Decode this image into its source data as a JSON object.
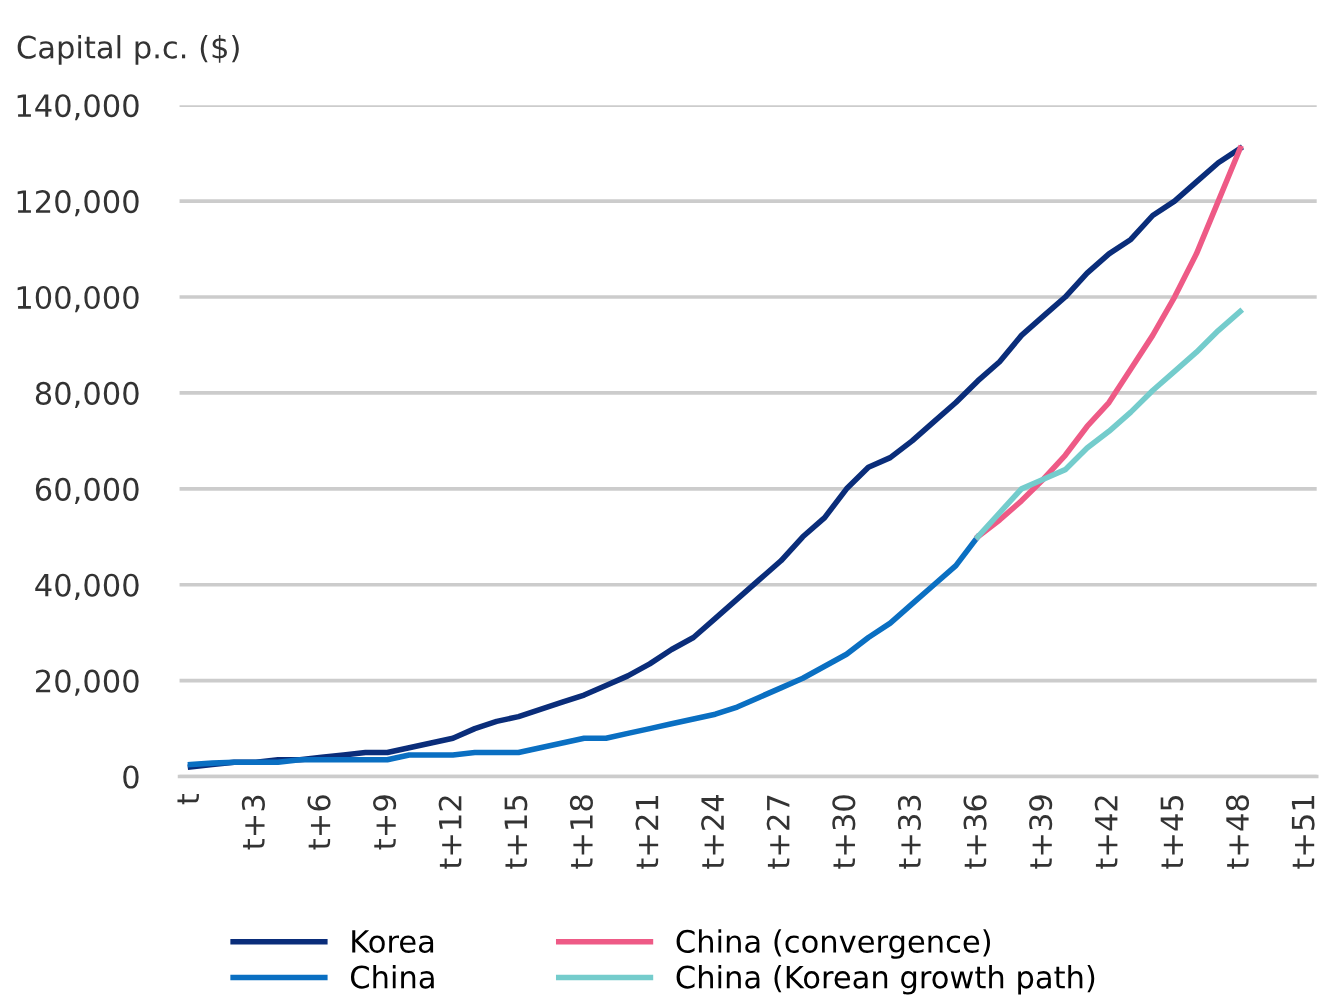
{
  "chart_data": {
    "type": "line",
    "ylabel": "Capital p.c. ($)",
    "categories": [
      "t",
      null,
      null,
      "t+3",
      null,
      null,
      "t+6",
      null,
      null,
      "t+9",
      null,
      null,
      "t+12",
      null,
      null,
      "t+15",
      null,
      null,
      "t+18",
      null,
      null,
      "t+21",
      null,
      null,
      "t+24",
      null,
      null,
      "t+27",
      null,
      null,
      "t+30",
      null,
      null,
      "t+33",
      null,
      null,
      "t+36",
      null,
      null,
      "t+39",
      null,
      null,
      "t+42",
      null,
      null,
      "t+45",
      null,
      null,
      "t+48",
      null,
      null,
      "t+51"
    ],
    "series": [
      {
        "name": "Korea",
        "color": "#0a2d7a",
        "values": [
          2000,
          2500,
          3000,
          3000,
          3500,
          3500,
          4000,
          4500,
          5000,
          5000,
          6000,
          7000,
          8000,
          10000,
          11500,
          12500,
          14000,
          15500,
          17000,
          19000,
          21000,
          23500,
          26500,
          29000,
          33000,
          37000,
          41000,
          45000,
          50000,
          54000,
          60000,
          64500,
          66500,
          70000,
          74000,
          78000,
          82500,
          86500,
          92000,
          96000,
          100000,
          105000,
          109000,
          112000,
          117000,
          120000,
          124000,
          128000,
          131000,
          null,
          null,
          null
        ]
      },
      {
        "name": "China",
        "color": "#0a6fc2",
        "values": [
          2500,
          2800,
          3000,
          3000,
          3000,
          3500,
          3500,
          3500,
          3500,
          3500,
          4500,
          4500,
          4500,
          5000,
          5000,
          5000,
          6000,
          7000,
          8000,
          8000,
          9000,
          10000,
          11000,
          12000,
          13000,
          14500,
          16500,
          18500,
          20500,
          23000,
          25500,
          29000,
          32000,
          36000,
          40000,
          44000,
          50000,
          null,
          null,
          null,
          null,
          null,
          null,
          null,
          null,
          null,
          null,
          null,
          null,
          null,
          null,
          null
        ]
      },
      {
        "name": "China (convergence)",
        "color": "#ee5a86",
        "values": [
          null,
          null,
          null,
          null,
          null,
          null,
          null,
          null,
          null,
          null,
          null,
          null,
          null,
          null,
          null,
          null,
          null,
          null,
          null,
          null,
          null,
          null,
          null,
          null,
          null,
          null,
          null,
          null,
          null,
          null,
          null,
          null,
          null,
          null,
          null,
          null,
          50000,
          53500,
          57500,
          62000,
          67000,
          73000,
          78000,
          85000,
          92000,
          100000,
          109000,
          120000,
          131000,
          null,
          null,
          null
        ]
      },
      {
        "name": "China (Korean growth path)",
        "color": "#74cccc",
        "values": [
          null,
          null,
          null,
          null,
          null,
          null,
          null,
          null,
          null,
          null,
          null,
          null,
          null,
          null,
          null,
          null,
          null,
          null,
          null,
          null,
          null,
          null,
          null,
          null,
          null,
          null,
          null,
          null,
          null,
          null,
          null,
          null,
          null,
          null,
          null,
          null,
          50000,
          55000,
          60000,
          62000,
          64000,
          68500,
          72000,
          76000,
          80500,
          84500,
          88500,
          93000,
          97000,
          null,
          null,
          null
        ]
      }
    ],
    "ylim": [
      0,
      140000
    ],
    "yticks": [
      0,
      {
        "value": 20000,
        "label": "20,000"
      },
      {
        "value": 40000,
        "label": "40,000"
      },
      {
        "value": 60000,
        "label": "60,000"
      },
      {
        "value": 80000,
        "label": "80,000"
      },
      {
        "value": 100000,
        "label": "100,000"
      },
      {
        "value": 120000,
        "label": "120,000"
      },
      {
        "value": 140000,
        "label": "140,000"
      }
    ],
    "grid": "y",
    "legend": "bottom",
    "line_style": "solid",
    "marker": "none"
  }
}
